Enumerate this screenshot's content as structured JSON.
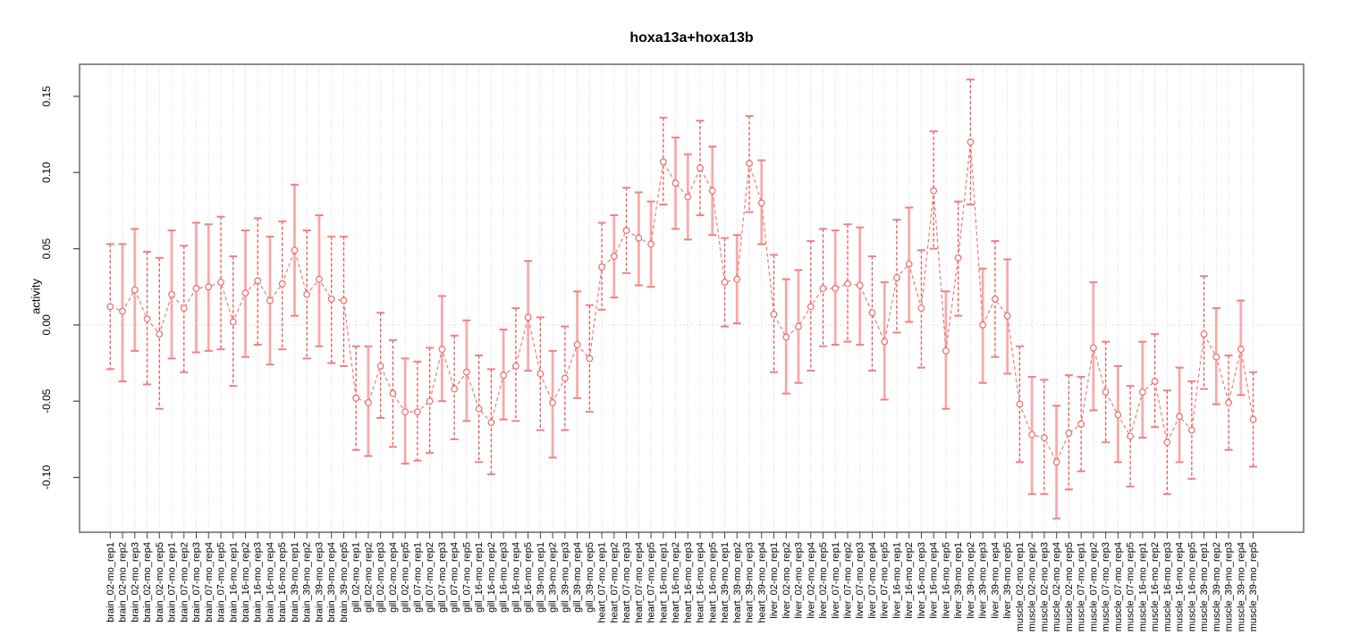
{
  "chart_data": {
    "type": "line+errorbar",
    "title": "hoxa13a+hoxa13b",
    "ylabel": "activity",
    "xlabel": "",
    "legend": "none",
    "grid": "vertical dotted at every category; horizontal dotted at y=0",
    "ylim": [
      -0.136,
      0.171
    ],
    "yticks": {
      "values": [
        0.15,
        0.1,
        0.05,
        0.0,
        -0.05,
        -0.1
      ],
      "labels": [
        "0.15",
        "0.10",
        "0.05",
        "0.00",
        "-0.05",
        "-0.10"
      ]
    },
    "x_categories": [
      "brain_02-mo_rep1",
      "brain_02-mo_rep2",
      "brain_02-mo_rep3",
      "brain_02-mo_rep4",
      "brain_02-mo_rep5",
      "brain_07-mo_rep1",
      "brain_07-mo_rep2",
      "brain_07-mo_rep3",
      "brain_07-mo_rep4",
      "brain_07-mo_rep5",
      "brain_16-mo_rep1",
      "brain_16-mo_rep2",
      "brain_16-mo_rep3",
      "brain_16-mo_rep4",
      "brain_16-mo_rep5",
      "brain_39-mo_rep1",
      "brain_39-mo_rep2",
      "brain_39-mo_rep3",
      "brain_39-mo_rep4",
      "brain_39-mo_rep5",
      "gill_02-mo_rep1",
      "gill_02-mo_rep2",
      "gill_02-mo_rep3",
      "gill_02-mo_rep4",
      "gill_02-mo_rep5",
      "gill_07-mo_rep1",
      "gill_07-mo_rep2",
      "gill_07-mo_rep3",
      "gill_07-mo_rep4",
      "gill_07-mo_rep5",
      "gill_16-mo_rep1",
      "gill_16-mo_rep2",
      "gill_16-mo_rep3",
      "gill_16-mo_rep4",
      "gill_16-mo_rep5",
      "gill_39-mo_rep1",
      "gill_39-mo_rep2",
      "gill_39-mo_rep3",
      "gill_39-mo_rep4",
      "gill_39-mo_rep5",
      "heart_07-mo_rep1",
      "heart_07-mo_rep2",
      "heart_07-mo_rep3",
      "heart_07-mo_rep4",
      "heart_07-mo_rep5",
      "heart_16-mo_rep1",
      "heart_16-mo_rep2",
      "heart_16-mo_rep3",
      "heart_16-mo_rep4",
      "heart_16-mo_rep5",
      "heart_39-mo_rep1",
      "heart_39-mo_rep2",
      "heart_39-mo_rep3",
      "heart_39-mo_rep4",
      "liver_02-mo_rep1",
      "liver_02-mo_rep2",
      "liver_02-mo_rep3",
      "liver_02-mo_rep4",
      "liver_02-mo_rep5",
      "liver_07-mo_rep1",
      "liver_07-mo_rep2",
      "liver_07-mo_rep3",
      "liver_07-mo_rep4",
      "liver_07-mo_rep5",
      "liver_16-mo_rep1",
      "liver_16-mo_rep2",
      "liver_16-mo_rep3",
      "liver_16-mo_rep4",
      "liver_16-mo_rep5",
      "liver_39-mo_rep1",
      "liver_39-mo_rep2",
      "liver_39-mo_rep3",
      "liver_39-mo_rep4",
      "liver_39-mo_rep5",
      "muscle_02-mo_rep1",
      "muscle_02-mo_rep2",
      "muscle_02-mo_rep3",
      "muscle_02-mo_rep4",
      "muscle_02-mo_rep5",
      "muscle_07-mo_rep1",
      "muscle_07-mo_rep2",
      "muscle_07-mo_rep3",
      "muscle_07-mo_rep4",
      "muscle_07-mo_rep5",
      "muscle_16-mo_rep1",
      "muscle_16-mo_rep2",
      "muscle_16-mo_rep3",
      "muscle_16-mo_rep4",
      "muscle_16-mo_rep5",
      "muscle_39-mo_rep1",
      "muscle_39-mo_rep2",
      "muscle_39-mo_rep3",
      "muscle_39-mo_rep4",
      "muscle_39-mo_rep5"
    ],
    "series": [
      {
        "name": "activity",
        "values": [
          0.012,
          0.009,
          0.023,
          0.004,
          -0.006,
          0.02,
          0.011,
          0.024,
          0.025,
          0.028,
          0.002,
          0.021,
          0.029,
          0.016,
          0.027,
          0.049,
          0.02,
          0.03,
          0.017,
          0.016,
          -0.048,
          -0.051,
          -0.027,
          -0.045,
          -0.057,
          -0.057,
          -0.05,
          -0.016,
          -0.042,
          -0.031,
          -0.055,
          -0.064,
          -0.033,
          -0.027,
          0.005,
          -0.032,
          -0.051,
          -0.035,
          -0.013,
          -0.022,
          0.038,
          0.045,
          0.062,
          0.057,
          0.053,
          0.107,
          0.093,
          0.084,
          0.103,
          0.088,
          0.028,
          0.03,
          0.106,
          0.08,
          0.007,
          -0.008,
          -0.001,
          0.012,
          0.024,
          0.024,
          0.027,
          0.026,
          0.008,
          -0.011,
          0.031,
          0.04,
          0.011,
          0.088,
          -0.017,
          0.044,
          0.12,
          0.0,
          0.017,
          0.006,
          -0.052,
          -0.072,
          -0.074,
          -0.09,
          -0.071,
          -0.065,
          -0.015,
          -0.044,
          -0.059,
          -0.073,
          -0.044,
          -0.037,
          -0.077,
          -0.06,
          -0.069,
          -0.006,
          -0.021,
          -0.051,
          -0.016,
          -0.062
        ],
        "err_low": [
          -0.029,
          -0.037,
          -0.017,
          -0.039,
          -0.055,
          -0.022,
          -0.031,
          -0.018,
          -0.017,
          -0.016,
          -0.04,
          -0.021,
          -0.013,
          -0.026,
          -0.016,
          0.006,
          -0.022,
          -0.014,
          -0.025,
          -0.027,
          -0.082,
          -0.086,
          -0.061,
          -0.08,
          -0.091,
          -0.089,
          -0.084,
          -0.05,
          -0.075,
          -0.063,
          -0.09,
          -0.098,
          -0.062,
          -0.063,
          -0.03,
          -0.069,
          -0.087,
          -0.069,
          -0.048,
          -0.057,
          0.01,
          0.018,
          0.034,
          0.026,
          0.025,
          0.079,
          0.063,
          0.056,
          0.072,
          0.059,
          -0.001,
          0.001,
          0.074,
          0.053,
          -0.031,
          -0.045,
          -0.038,
          -0.03,
          -0.014,
          -0.013,
          -0.011,
          -0.013,
          -0.03,
          -0.049,
          -0.005,
          0.002,
          -0.028,
          0.05,
          -0.055,
          0.006,
          0.079,
          -0.038,
          -0.021,
          -0.032,
          -0.09,
          -0.111,
          -0.111,
          -0.127,
          -0.108,
          -0.096,
          -0.056,
          -0.077,
          -0.09,
          -0.106,
          -0.074,
          -0.067,
          -0.111,
          -0.09,
          -0.101,
          -0.042,
          -0.052,
          -0.082,
          -0.046,
          -0.093
        ],
        "err_high": [
          0.053,
          0.053,
          0.063,
          0.048,
          0.044,
          0.062,
          0.052,
          0.067,
          0.066,
          0.071,
          0.045,
          0.062,
          0.07,
          0.058,
          0.068,
          0.092,
          0.062,
          0.072,
          0.058,
          0.058,
          -0.014,
          -0.014,
          0.008,
          -0.01,
          -0.022,
          -0.024,
          -0.015,
          0.019,
          -0.007,
          0.003,
          -0.02,
          -0.029,
          -0.003,
          0.011,
          0.042,
          0.005,
          -0.017,
          -0.001,
          0.022,
          0.013,
          0.067,
          0.072,
          0.09,
          0.087,
          0.081,
          0.136,
          0.123,
          0.112,
          0.134,
          0.117,
          0.057,
          0.059,
          0.137,
          0.108,
          0.046,
          0.03,
          0.036,
          0.055,
          0.063,
          0.062,
          0.066,
          0.064,
          0.045,
          0.028,
          0.069,
          0.077,
          0.049,
          0.127,
          0.022,
          0.081,
          0.161,
          0.037,
          0.055,
          0.043,
          -0.014,
          -0.034,
          -0.036,
          -0.053,
          -0.033,
          -0.034,
          0.028,
          -0.011,
          -0.027,
          -0.04,
          -0.011,
          -0.006,
          -0.043,
          -0.028,
          -0.037,
          0.032,
          0.011,
          -0.02,
          0.016,
          -0.031
        ],
        "stem_dashed": [
          1,
          0,
          0,
          1,
          1,
          0,
          1,
          0,
          0,
          1,
          1,
          0,
          1,
          0,
          1,
          0,
          1,
          0,
          1,
          1,
          1,
          0,
          1,
          1,
          0,
          1,
          1,
          0,
          1,
          0,
          1,
          1,
          0,
          1,
          0,
          1,
          0,
          1,
          0,
          1,
          1,
          0,
          1,
          0,
          0,
          1,
          0,
          0,
          1,
          0,
          1,
          0,
          1,
          0,
          1,
          0,
          0,
          1,
          1,
          0,
          1,
          0,
          1,
          0,
          1,
          0,
          1,
          1,
          0,
          1,
          1,
          0,
          1,
          0,
          1,
          0,
          1,
          0,
          1,
          1,
          0,
          1,
          0,
          1,
          0,
          1,
          1,
          0,
          1,
          1,
          0,
          1,
          0,
          1
        ]
      }
    ],
    "colors": {
      "point": "#ee6a6a",
      "cap": "#f08080",
      "stem_solid": "#f7aaaa",
      "stem_dashed": "#e65555",
      "series_line": "#f07878",
      "grid": "#cfcfcf",
      "box": "#828282",
      "tick": "#454545",
      "text": "#000000"
    }
  }
}
